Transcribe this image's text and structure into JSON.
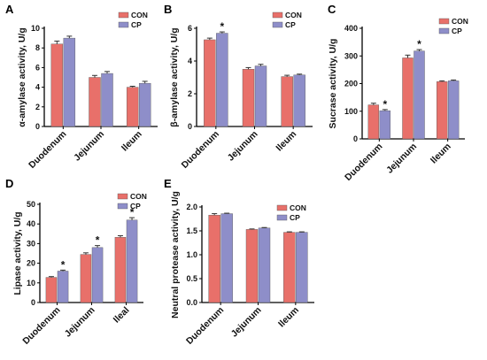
{
  "colors": {
    "con": "#e8706a",
    "cp": "#8e8ec9",
    "axis": "#000000",
    "error": "#333333"
  },
  "chart_data": [
    {
      "panel": "A",
      "type": "bar",
      "ylabel": "α-amylase activity, U/g",
      "ylim": [
        0,
        10
      ],
      "yticks": [
        0,
        2,
        4,
        6,
        8,
        10
      ],
      "categories": [
        "Duodenum",
        "Jejunum",
        "Ileum"
      ],
      "series": [
        {
          "name": "CON",
          "values": [
            8.4,
            5.0,
            4.0
          ],
          "errors": [
            0.3,
            0.2,
            0.1
          ]
        },
        {
          "name": "CP",
          "values": [
            9.0,
            5.4,
            4.4
          ],
          "errors": [
            0.2,
            0.2,
            0.2
          ]
        }
      ],
      "significance": [],
      "legend": "top-right"
    },
    {
      "panel": "B",
      "type": "bar",
      "ylabel": "β-amylase activity, U/g",
      "ylim": [
        0,
        6
      ],
      "yticks": [
        0,
        2,
        4,
        6
      ],
      "categories": [
        "Duodenum",
        "Jejunum",
        "Ileum"
      ],
      "series": [
        {
          "name": "CON",
          "values": [
            5.3,
            3.5,
            3.05
          ],
          "errors": [
            0.1,
            0.1,
            0.08
          ]
        },
        {
          "name": "CP",
          "values": [
            5.7,
            3.7,
            3.15
          ],
          "errors": [
            0.08,
            0.1,
            0.05
          ]
        }
      ],
      "significance": [
        {
          "category": 0,
          "series": 1,
          "mark": "*"
        }
      ],
      "legend": "top-right"
    },
    {
      "panel": "C",
      "type": "bar",
      "ylabel": "Sucrase activity, U/g",
      "ylim": [
        0,
        400
      ],
      "yticks": [
        0,
        100,
        200,
        300,
        400
      ],
      "categories": [
        "Duodenum",
        "Jejunum",
        "Ileum"
      ],
      "series": [
        {
          "name": "CON",
          "values": [
            123,
            293,
            207
          ],
          "errors": [
            6,
            10,
            3
          ]
        },
        {
          "name": "CP",
          "values": [
            102,
            318,
            210
          ],
          "errors": [
            4,
            5,
            3
          ]
        }
      ],
      "significance": [
        {
          "category": 0,
          "series": 1,
          "mark": "*"
        },
        {
          "category": 1,
          "series": 1,
          "mark": "*"
        }
      ],
      "legend": "top-right"
    },
    {
      "panel": "D",
      "type": "bar",
      "ylabel": "Lipase activity, U/g",
      "ylim": [
        0,
        50
      ],
      "yticks": [
        0,
        10,
        20,
        30,
        40,
        50
      ],
      "categories": [
        "Duodenum",
        "Jejunum",
        "Ileal"
      ],
      "series": [
        {
          "name": "CON",
          "values": [
            12.8,
            24.5,
            33.2
          ],
          "errors": [
            0.4,
            0.8,
            0.8
          ]
        },
        {
          "name": "CP",
          "values": [
            16.0,
            28.0,
            42.0
          ],
          "errors": [
            0.5,
            1.0,
            1.2
          ]
        }
      ],
      "significance": [
        {
          "category": 0,
          "series": 1,
          "mark": "*"
        },
        {
          "category": 1,
          "series": 1,
          "mark": "*"
        },
        {
          "category": 2,
          "series": 1,
          "mark": "*"
        }
      ],
      "legend": "top-right"
    },
    {
      "panel": "E",
      "type": "bar",
      "ylabel": "Neutral protease activity, U/g",
      "ylim": [
        0,
        2.0
      ],
      "yticks": [
        0.0,
        0.5,
        1.0,
        1.5,
        2.0
      ],
      "categories": [
        "Duodenum",
        "Jejunum",
        "Ileum"
      ],
      "series": [
        {
          "name": "CON",
          "values": [
            1.83,
            1.53,
            1.47
          ],
          "errors": [
            0.03,
            0.01,
            0.01
          ]
        },
        {
          "name": "CP",
          "values": [
            1.86,
            1.56,
            1.47
          ],
          "errors": [
            0.01,
            0.01,
            0.01
          ]
        }
      ],
      "significance": [],
      "legend": "top-right"
    }
  ]
}
